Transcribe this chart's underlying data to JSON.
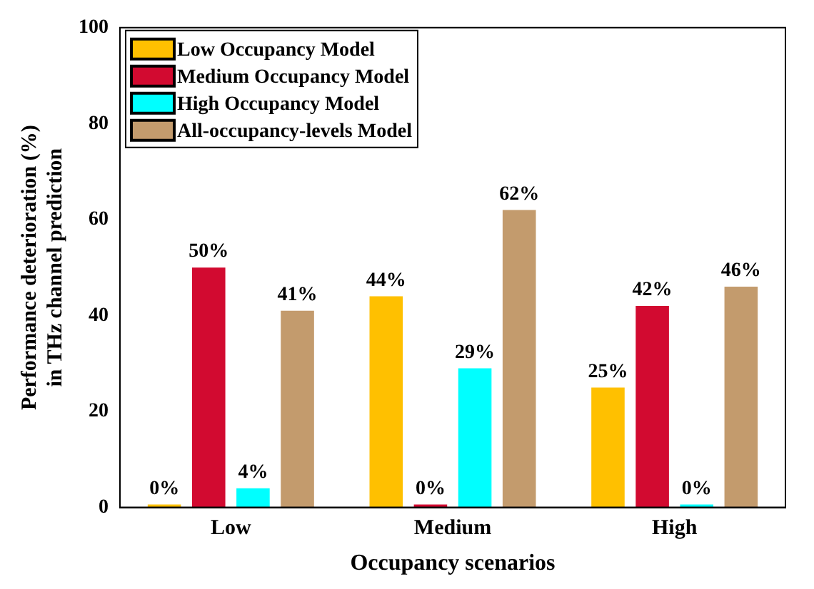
{
  "chart_data": {
    "type": "bar",
    "xlabel": "Occupancy scenarios",
    "ylabel": "Performance deterioration (%)\nin THz channel prediction",
    "categories": [
      "Low",
      "Medium",
      "High"
    ],
    "series": [
      {
        "name": "Low Occupancy Model",
        "color": "#ffc000",
        "values": [
          0,
          44,
          25
        ],
        "value_labels": [
          "0%",
          "44%",
          "25%"
        ]
      },
      {
        "name": "Medium Occupancy Model",
        "color": "#d20a30",
        "values": [
          50,
          0,
          42
        ],
        "value_labels": [
          "50%",
          "0%",
          "42%"
        ]
      },
      {
        "name": "High Occupancy Model",
        "color": "#00ffff",
        "values": [
          4,
          29,
          0
        ],
        "value_labels": [
          "4%",
          "29%",
          "0%"
        ]
      },
      {
        "name": "All-occupancy-levels Model",
        "color": "#c39b6d",
        "values": [
          41,
          62,
          46
        ],
        "value_labels": [
          "41%",
          "62%",
          "46%"
        ]
      }
    ],
    "ylim": [
      0,
      100
    ],
    "yticks": [
      0,
      20,
      40,
      60,
      80,
      100
    ],
    "grid": false,
    "legend": "top left"
  }
}
